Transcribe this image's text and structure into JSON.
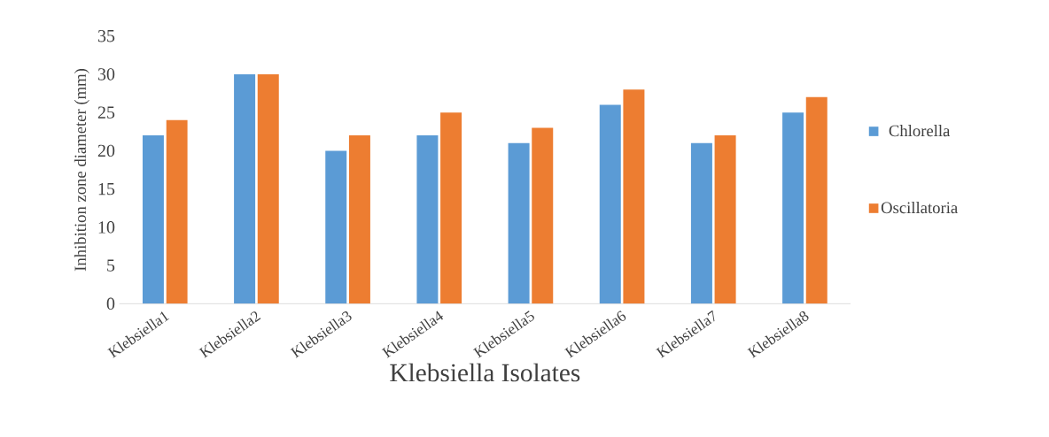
{
  "chart_data": {
    "type": "bar",
    "xlabel": "Klebsiella  Isolates",
    "ylabel": "Inhibition zone diameter (mm)",
    "categories": [
      "Klebsiella1",
      "Klebsiella2",
      "Klebsiella3",
      "Klebsiella4",
      "Klebsiella5",
      "Klebsiella6",
      "Klebsiella7",
      "Klebsiella8"
    ],
    "series": [
      {
        "name": "Chlorella",
        "color": "#5b9bd5",
        "values": [
          22,
          30,
          20,
          22,
          21,
          26,
          21,
          25
        ]
      },
      {
        "name": "Oscillatoria",
        "color": "#ed7d31",
        "values": [
          24,
          30,
          22,
          25,
          23,
          28,
          22,
          27
        ]
      }
    ],
    "ylim": [
      0,
      35
    ],
    "yticks": [
      0,
      5,
      10,
      15,
      20,
      25,
      30,
      35
    ],
    "legend": "right"
  }
}
